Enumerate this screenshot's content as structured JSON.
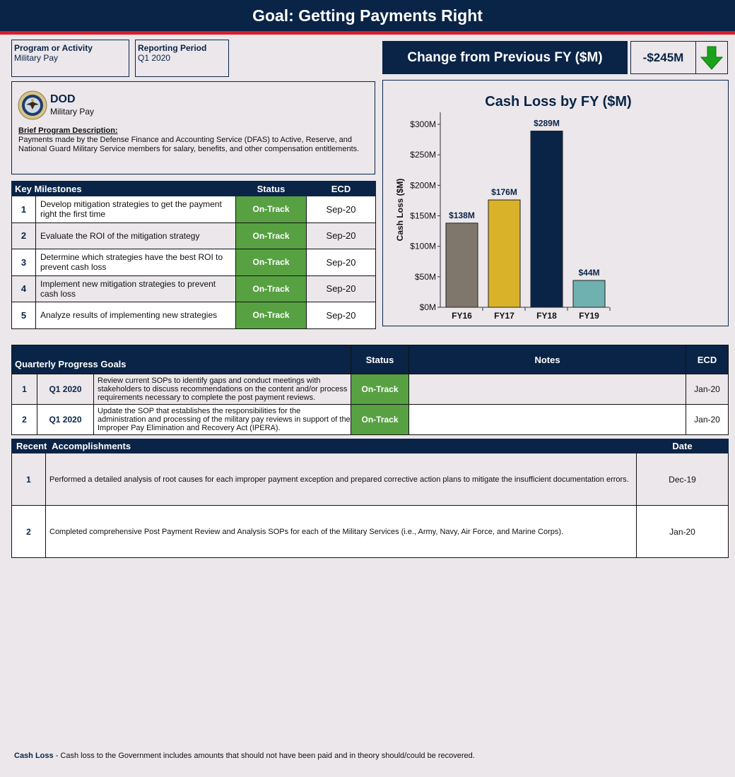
{
  "title": "Goal: Getting Payments Right",
  "program": {
    "label": "Program or Activity",
    "value": "Military Pay"
  },
  "period": {
    "label": "Reporting Period",
    "value": "Q1 2020"
  },
  "change": {
    "title": "Change from Previous FY ($M)",
    "value": "-$245M",
    "direction_icon": "arrow-down-icon",
    "arrow_color": "#1aa31a"
  },
  "agency": {
    "name": "DOD",
    "program": "Military Pay",
    "desc_label": "Brief Program Description:",
    "desc": "Payments made by the Defense Finance and Accounting Service (DFAS) to Active, Reserve, and National Guard Military Service members for salary, benefits, and other compensation entitlements."
  },
  "milestones": {
    "headers": [
      "Key Milestones",
      "Status",
      "ECD"
    ],
    "rows": [
      {
        "num": "1",
        "text": "Develop mitigation strategies to get the payment right the first time",
        "status": "On-Track",
        "ecd": "Sep-20"
      },
      {
        "num": "2",
        "text": "Evaluate the ROI of the mitigation strategy",
        "status": "On-Track",
        "ecd": "Sep-20"
      },
      {
        "num": "3",
        "text": "Determine which strategies have the best ROI to prevent cash loss",
        "status": "On-Track",
        "ecd": "Sep-20"
      },
      {
        "num": "4",
        "text": "Implement new mitigation strategies to prevent cash loss",
        "status": "On-Track",
        "ecd": "Sep-20"
      },
      {
        "num": "5",
        "text": "Analyze results of implementing new strategies",
        "status": "On-Track",
        "ecd": "Sep-20"
      }
    ]
  },
  "chart_data": {
    "type": "bar",
    "title": "Cash Loss by FY ($M)",
    "ylabel": "Cash Loss ($M)",
    "xlabel": "",
    "categories": [
      "FY16",
      "FY17",
      "FY18",
      "FY19"
    ],
    "values": [
      138,
      176,
      289,
      44
    ],
    "data_labels": [
      "$138M",
      "$176M",
      "$289M",
      "$44M"
    ],
    "colors": [
      "#7f776c",
      "#d9b22a",
      "#0a2447",
      "#6fb1b0"
    ],
    "ylim": [
      0,
      300
    ],
    "yticks": [
      0,
      50,
      100,
      150,
      200,
      250,
      300
    ],
    "ytick_labels": [
      "$0M",
      "$50M",
      "$100M",
      "$150M",
      "$200M",
      "$250M",
      "$300M"
    ],
    "grid": false
  },
  "quarterly": {
    "headers": [
      "Quarterly Progress Goals",
      "Status",
      "Notes",
      "ECD"
    ],
    "rows": [
      {
        "num": "1",
        "quarter": "Q1 2020",
        "text": "Review current SOPs to identify gaps and conduct meetings with stakeholders to discuss recommendations on the content and/or process requirements necessary to complete the post payment reviews.",
        "status": "On-Track",
        "notes": "",
        "ecd": "Jan-20"
      },
      {
        "num": "2",
        "quarter": "Q1 2020",
        "text": "Update the SOP that establishes the responsibilities for the administration and processing of the military pay reviews in support of the Improper Pay Elimination and Recovery Act (IPERA).",
        "status": "On-Track",
        "notes": "",
        "ecd": "Jan-20"
      }
    ]
  },
  "accomplishments": {
    "headers": [
      "Recent  Accomplishments",
      "Date"
    ],
    "rows": [
      {
        "num": "1",
        "text": "Performed a detailed analysis of root causes for each improper payment exception and prepared corrective action plans to mitigate the insufficient documentation errors.",
        "date": "Dec-19"
      },
      {
        "num": "2",
        "text": "Completed comprehensive Post Payment Review and Analysis SOPs for each of the Military Services (i.e., Army, Navy, Air Force, and Marine Corps).",
        "date": "Jan-20"
      }
    ]
  },
  "footnote": {
    "term": "Cash Loss",
    "text": " - Cash loss to the Government includes amounts that should not have been paid and in theory should/could be recovered."
  }
}
